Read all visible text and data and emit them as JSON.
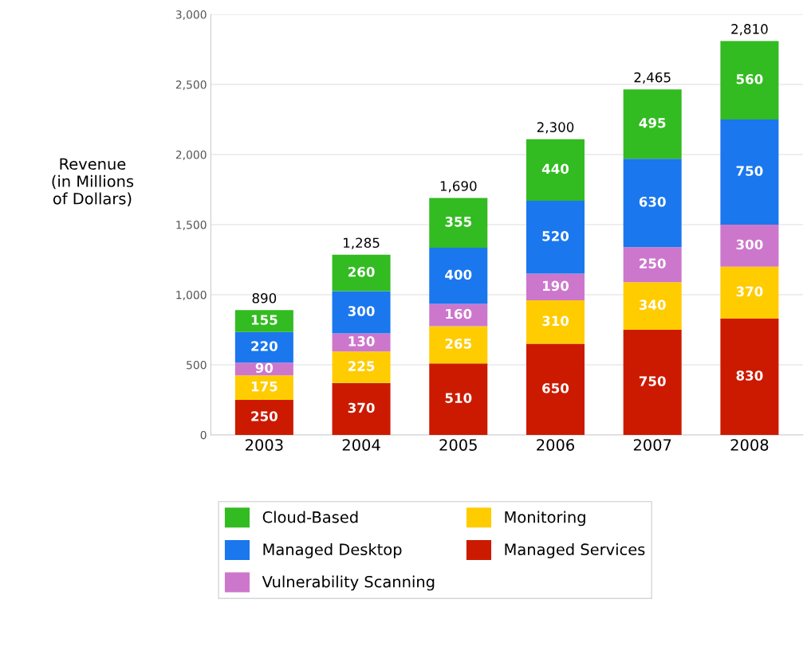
{
  "chart_data": {
    "type": "bar",
    "stacked": true,
    "ylabel": "Revenue\n(in Millions\nof Dollars)",
    "categories": [
      "2003",
      "2004",
      "2005",
      "2006",
      "2007",
      "2008"
    ],
    "series": [
      {
        "name": "Managed Services",
        "color": "#cc1a00",
        "values": [
          250,
          370,
          510,
          650,
          750,
          830
        ]
      },
      {
        "name": "Monitoring",
        "color": "#ffcc00",
        "values": [
          175,
          225,
          265,
          310,
          340,
          370
        ]
      },
      {
        "name": "Vulnerability Scanning",
        "color": "#cc77cc",
        "values": [
          90,
          130,
          160,
          190,
          250,
          300
        ]
      },
      {
        "name": "Managed Desktop",
        "color": "#1a77ee",
        "values": [
          220,
          300,
          400,
          520,
          630,
          750
        ]
      },
      {
        "name": "Cloud-Based",
        "color": "#33bb22",
        "values": [
          155,
          260,
          355,
          440,
          495,
          560
        ]
      }
    ],
    "annotations": [
      {
        "text": "890",
        "x": "2003",
        "y": 890
      },
      {
        "text": "1,285",
        "x": "2004",
        "y": 1285
      },
      {
        "text": "1,690",
        "x": "2005",
        "y": 1690
      },
      {
        "text": "2,300",
        "x": "2006",
        "y": 2110
      },
      {
        "text": "2,465",
        "x": "2007",
        "y": 2465
      },
      {
        "text": "2,810",
        "x": "2008",
        "y": 2810
      }
    ],
    "data_labels": true,
    "ylim": [
      0,
      3000
    ],
    "yticks": [
      0,
      {
        "value": 500,
        "label": "500"
      },
      {
        "value": 1000,
        "label": "1,000"
      },
      {
        "value": 1500,
        "label": "1,500"
      },
      {
        "value": 2000,
        "label": "2,000"
      },
      {
        "value": 2500,
        "label": "2,500"
      },
      {
        "value": 3000,
        "label": "3,000"
      }
    ],
    "grid": "y",
    "legend": "bottom"
  }
}
